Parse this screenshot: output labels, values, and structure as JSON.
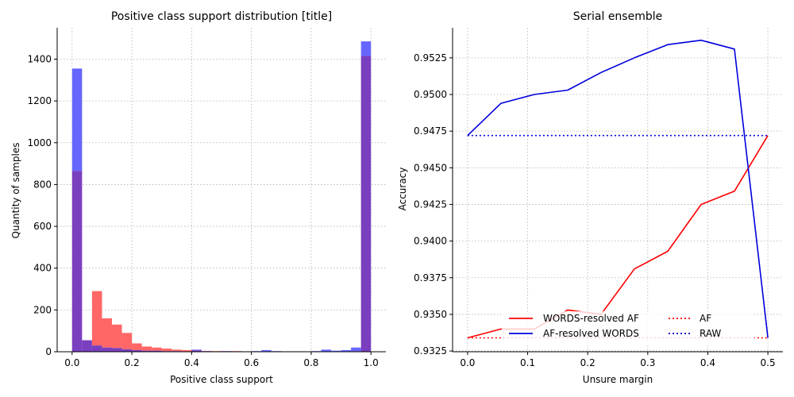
{
  "chart_data": [
    {
      "type": "bar",
      "title": "Positive class support distribution [title]",
      "xlabel": "Positive class support",
      "ylabel": "Quantity of samples",
      "xlim": [
        -0.05,
        1.05
      ],
      "ylim": [
        0,
        1550
      ],
      "xticks": [
        0.0,
        0.2,
        0.4,
        0.6,
        0.8,
        1.0
      ],
      "xtick_labels": [
        "0.0",
        "0.2",
        "0.4",
        "0.6",
        "0.8",
        "1.0"
      ],
      "yticks": [
        0,
        200,
        400,
        600,
        800,
        1000,
        1200,
        1400
      ],
      "ytick_labels": [
        "0",
        "200",
        "400",
        "600",
        "800",
        "1000",
        "1200",
        "1400"
      ],
      "grid": true,
      "bin_width": 0.0333,
      "bin_starts": [
        0.0,
        0.0333,
        0.0667,
        0.1,
        0.1333,
        0.1667,
        0.2,
        0.2333,
        0.2667,
        0.3,
        0.3333,
        0.3667,
        0.4,
        0.4333,
        0.4667,
        0.5,
        0.5333,
        0.5667,
        0.6,
        0.6333,
        0.6667,
        0.7,
        0.7333,
        0.7667,
        0.8,
        0.8333,
        0.8667,
        0.9,
        0.9333,
        0.9667
      ],
      "series": [
        {
          "color": "#ff6666",
          "values": [
            865,
            55,
            290,
            160,
            130,
            90,
            40,
            25,
            20,
            15,
            10,
            8,
            7,
            4,
            3,
            3,
            3,
            2,
            2,
            2,
            2,
            2,
            1,
            1,
            1,
            1,
            1,
            2,
            3,
            1415
          ]
        },
        {
          "color": "#6666ff",
          "values": [
            1355,
            55,
            30,
            20,
            18,
            12,
            8,
            5,
            5,
            3,
            3,
            2,
            10,
            3,
            2,
            3,
            2,
            2,
            3,
            8,
            3,
            2,
            2,
            2,
            3,
            10,
            5,
            8,
            20,
            1485
          ]
        }
      ],
      "overlap_color": "#7a3fbf"
    },
    {
      "type": "line",
      "title": "Serial ensemble",
      "xlabel": "Unsure margin",
      "ylabel": "Accuracy",
      "xlim": [
        -0.025,
        0.525
      ],
      "ylim": [
        0.93245,
        0.95455
      ],
      "xticks": [
        0.0,
        0.1,
        0.2,
        0.3,
        0.4,
        0.5
      ],
      "xtick_labels": [
        "0.0",
        "0.1",
        "0.2",
        "0.3",
        "0.4",
        "0.5"
      ],
      "yticks": [
        0.9325,
        0.935,
        0.9375,
        0.94,
        0.9425,
        0.945,
        0.9475,
        0.95,
        0.9525
      ],
      "ytick_labels": [
        "0.9325",
        "0.9350",
        "0.9375",
        "0.9400",
        "0.9425",
        "0.9450",
        "0.9475",
        "0.9500",
        "0.9525"
      ],
      "grid": true,
      "x": [
        0.0,
        0.0556,
        0.1111,
        0.1667,
        0.2222,
        0.2778,
        0.3333,
        0.3889,
        0.4444,
        0.5
      ],
      "series": [
        {
          "name": "WORDS-resolved AF",
          "color": "#ff0000",
          "style": "solid",
          "values": [
            0.9334,
            0.934,
            0.934,
            0.9353,
            0.935,
            0.9381,
            0.9393,
            0.9425,
            0.9434,
            0.9472
          ]
        },
        {
          "name": "AF-resolved WORDS",
          "color": "#0000dd",
          "style": "solid",
          "values": [
            0.9472,
            0.9494,
            0.95,
            0.9503,
            0.9515,
            0.9525,
            0.9534,
            0.9537,
            0.9531,
            0.9334
          ]
        },
        {
          "name": "AF",
          "color": "#ff0000",
          "style": "dotted",
          "values": [
            0.9334,
            0.9334,
            0.9334,
            0.9334,
            0.9334,
            0.9334,
            0.9334,
            0.9334,
            0.9334,
            0.9334
          ]
        },
        {
          "name": "RAW",
          "color": "#0000dd",
          "style": "dotted",
          "values": [
            0.9472,
            0.9472,
            0.9472,
            0.9472,
            0.9472,
            0.9472,
            0.9472,
            0.9472,
            0.9472,
            0.9472
          ]
        }
      ],
      "legend": {
        "placement": "lower-center",
        "columns": 2
      }
    }
  ]
}
